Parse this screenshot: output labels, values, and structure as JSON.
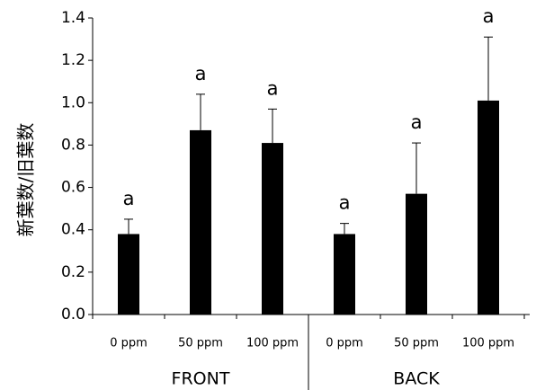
{
  "chart_data": {
    "type": "bar",
    "y_label": "新葉数/旧葉数",
    "categories": [
      "0 ppm",
      "50 ppm",
      "100 ppm",
      "0 ppm",
      "50 ppm",
      "100 ppm"
    ],
    "groups": [
      "FRONT",
      "BACK"
    ],
    "values": [
      0.38,
      0.87,
      0.81,
      0.38,
      0.57,
      1.01
    ],
    "errors": [
      0.07,
      0.17,
      0.16,
      0.05,
      0.24,
      0.3
    ],
    "annotations": [
      "a",
      "a",
      "a",
      "a",
      "a",
      "a"
    ],
    "color": "#000000",
    "ylim": [
      0,
      1.4
    ],
    "yticks": [
      {
        "value": 0,
        "label": "0.0"
      },
      {
        "value": 0.2,
        "label": "0.2"
      },
      {
        "value": 0.4,
        "label": "0.4"
      },
      {
        "value": 0.6,
        "label": "0.6"
      },
      {
        "value": 0.8,
        "label": "0.8"
      },
      {
        "value": 1.0,
        "label": "1.0"
      },
      {
        "value": 1.2,
        "label": "1.2"
      },
      {
        "value": 1.4,
        "label": "1.4"
      }
    ],
    "grid": false
  }
}
